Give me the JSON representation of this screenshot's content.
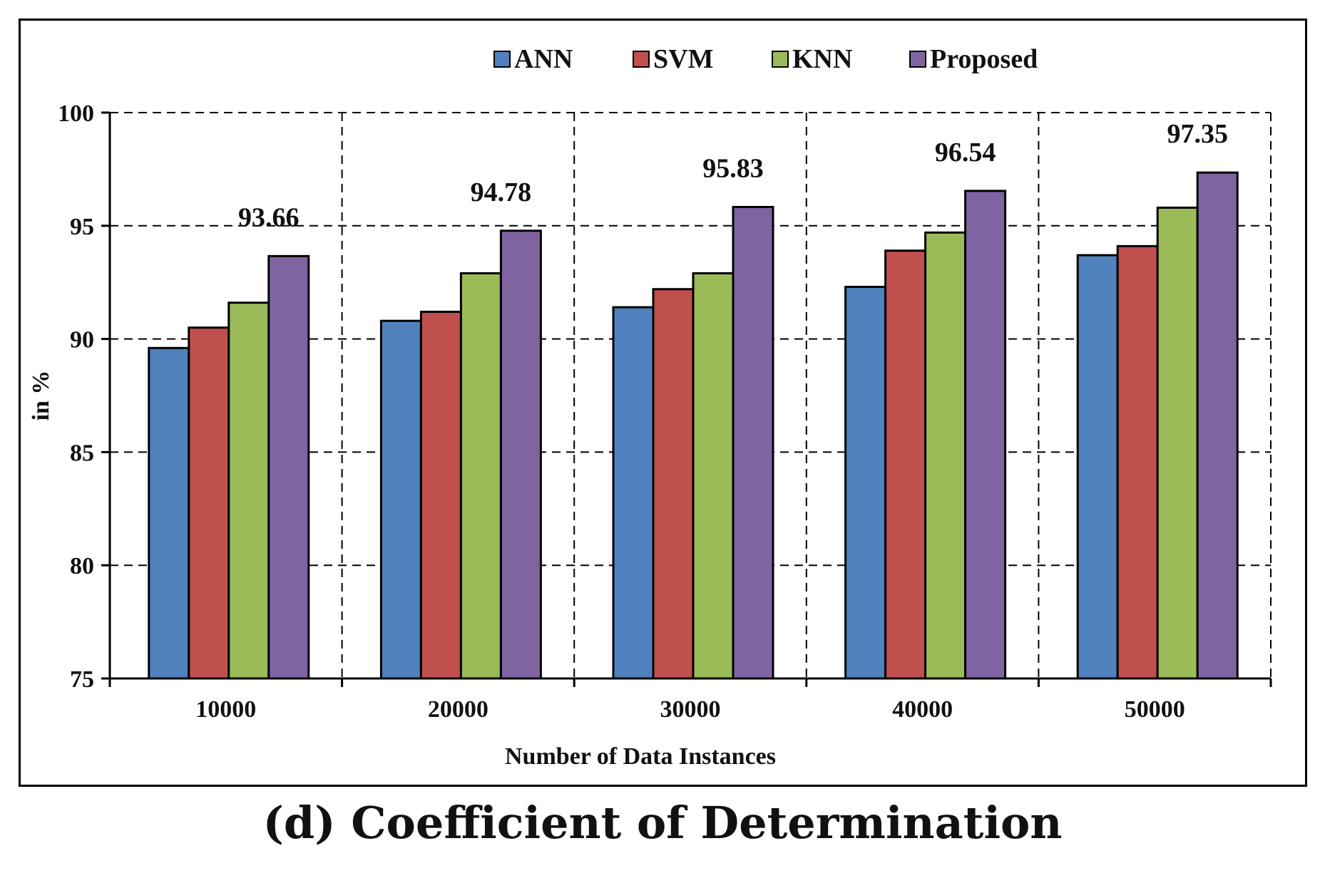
{
  "caption": {
    "label": "(d)",
    "text": "Coefficient of Determination"
  },
  "chart_data": {
    "type": "bar",
    "title": "",
    "xlabel": "Number  of Data  Instances",
    "ylabel": "in %",
    "categories": [
      "10000",
      "20000",
      "30000",
      "40000",
      "50000"
    ],
    "ylim": [
      75,
      100
    ],
    "yticks": [
      75,
      80,
      85,
      90,
      95,
      100
    ],
    "grid": true,
    "legend_position": "top",
    "series": [
      {
        "name": "ANN",
        "color": "#4f81bd",
        "values": [
          89.6,
          90.8,
          91.4,
          92.3,
          93.7
        ]
      },
      {
        "name": "SVM",
        "color": "#c0504d",
        "values": [
          90.5,
          91.2,
          92.2,
          93.9,
          94.1
        ]
      },
      {
        "name": "KNN",
        "color": "#9bbb59",
        "values": [
          91.6,
          92.9,
          92.9,
          94.7,
          95.8
        ]
      },
      {
        "name": "Proposed",
        "color": "#8064a2",
        "values": [
          93.66,
          94.78,
          95.83,
          96.54,
          97.35
        ]
      }
    ],
    "data_labels": [
      {
        "series": "Proposed",
        "category": "10000",
        "text": "93.66"
      },
      {
        "series": "Proposed",
        "category": "20000",
        "text": "94.78"
      },
      {
        "series": "Proposed",
        "category": "30000",
        "text": "95.83"
      },
      {
        "series": "Proposed",
        "category": "40000",
        "text": "96.54"
      },
      {
        "series": "Proposed",
        "category": "50000",
        "text": "97.35"
      }
    ]
  }
}
